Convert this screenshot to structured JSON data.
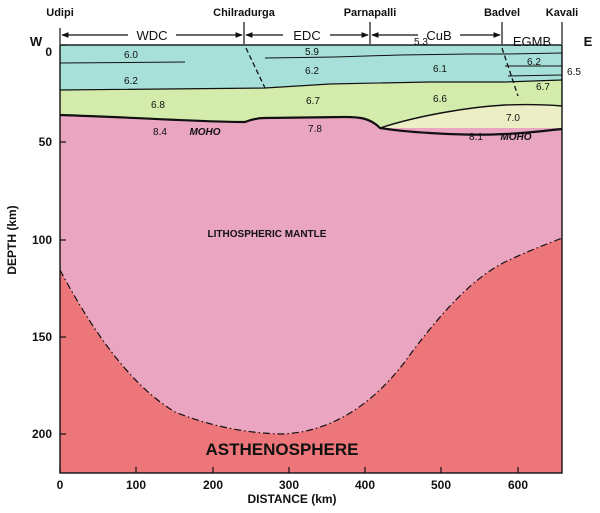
{
  "locations": [
    "Udipi",
    "Chilradurga",
    "Parnapalli",
    "Badvel",
    "Kavali"
  ],
  "directions": {
    "west": "W",
    "east": "E"
  },
  "terranes": [
    "WDC",
    "EDC",
    "CuB",
    "EGMB"
  ],
  "velocities": [
    "6.0",
    "6.2",
    "6.8",
    "8.4",
    "5.9",
    "6.2",
    "6.7",
    "7.8",
    "5.3",
    "6.1",
    "6.6",
    "8.1",
    "7.0",
    "6.2",
    "6.7",
    "6.5"
  ],
  "moho_labels": [
    "MOHO",
    "MOHO"
  ],
  "regions": {
    "mantle": "LITHOSPHERIC MANTLE",
    "asthenosphere": "ASTHENOSPHERE"
  },
  "axes": {
    "x": {
      "title": "DISTANCE (km)",
      "ticks": [
        "0",
        "100",
        "200",
        "300",
        "400",
        "500",
        "600"
      ]
    },
    "y": {
      "title": "DEPTH (km)",
      "ticks": [
        "0",
        "50",
        "100",
        "150",
        "200"
      ]
    }
  },
  "colors": {
    "upper_crust": "#a6e0d8",
    "middle_crust": "#d3ecab",
    "lower_crust_east": "#ecefc6",
    "lithospheric_mantle": "#eaa5c1",
    "asthenosphere": "#ec7679",
    "boundary": "#111111"
  }
}
